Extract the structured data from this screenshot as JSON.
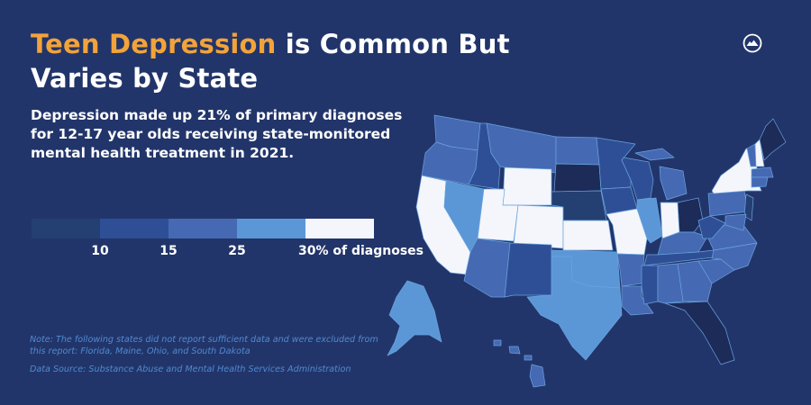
{
  "title": {
    "highlight": "Teen Depression",
    "rest_line1": " is Common But",
    "line2": "Varies by State"
  },
  "subtitle": "Depression made up 21% of primary diagnoses for 12-17 year olds receiving state-monitored mental health treatment in 2021.",
  "legend": {
    "colors": [
      "#243f72",
      "#2e4f96",
      "#4669b3",
      "#5b97d6",
      "#f4f6fb"
    ],
    "ticks": [
      "10",
      "15",
      "25",
      "30% of diagnoses"
    ]
  },
  "excluded_color": "#1d2b58",
  "note": "Note: The following states did not report sufficient data and were excluded from this report: Florida, Maine, Ohio, and South Dakota",
  "source": "Data Source: Substance Abuse and Mental Health Services Administration",
  "logo": "mountain-circle-logo",
  "map": {
    "state_bins": {
      "WA": 2,
      "OR": 2,
      "CA": 4,
      "NV": 3,
      "ID": 1,
      "MT": 2,
      "WY": 4,
      "UT": 4,
      "CO": 4,
      "AZ": 2,
      "NM": 1,
      "ND": 2,
      "SD": "excluded",
      "NE": 0,
      "KS": 4,
      "OK": 3,
      "TX": 3,
      "MN": 1,
      "IA": 1,
      "MO": 4,
      "AR": 2,
      "LA": 2,
      "WI": 1,
      "IL": 3,
      "MI": 2,
      "IN": 4,
      "OH": "excluded",
      "KY": 2,
      "TN": 1,
      "MS": 1,
      "AL": 2,
      "GA": 2,
      "FL": "excluded",
      "SC": 2,
      "NC": 2,
      "VA": 2,
      "WV": 1,
      "PA": 2,
      "NY": 4,
      "NJ": 0,
      "MD": 2,
      "VT": 2,
      "NH": 4,
      "MA": 2,
      "CT": 2,
      "ME": "excluded",
      "AK": 3,
      "HI": 2
    }
  }
}
